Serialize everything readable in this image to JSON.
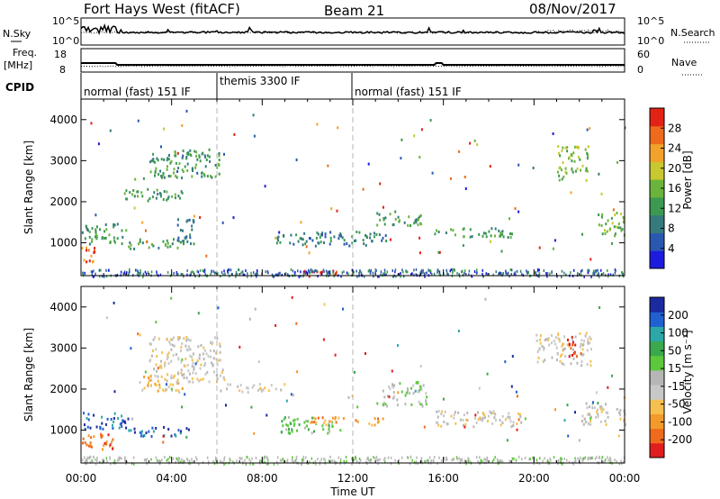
{
  "header": {
    "title": "Fort Hays West (fitACF)",
    "beam": "Beam 21",
    "date": "08/Nov/2017"
  },
  "top_panel": {
    "nsky_label": "N.Sky",
    "nsearch_label": "N.Search",
    "left_ticks": [
      "10^5",
      "10^0"
    ],
    "right_ticks": [
      "10^5",
      "10^0"
    ]
  },
  "freq_panel": {
    "freq_label": "Freq.",
    "freq_unit": "[MHz]",
    "nave_label": "Nave",
    "left_ticks": [
      "18",
      "8"
    ],
    "right_ticks": [
      "60",
      "0"
    ]
  },
  "cpid": {
    "label": "CPID",
    "segments": [
      {
        "name": "normal (fast) 151 IF",
        "start_hour": 0,
        "end_hour": 6
      },
      {
        "name": "themis 3300 IF",
        "start_hour": 6,
        "end_hour": 12
      },
      {
        "name": "normal (fast) 151 IF",
        "start_hour": 12,
        "end_hour": 24
      }
    ]
  },
  "power_colorbar": {
    "label": "Power [dB]",
    "ticks": [
      "4",
      "8",
      "12",
      "16",
      "20",
      "24",
      "28"
    ],
    "colors": [
      "#1c1cde",
      "#2a58b0",
      "#357a7c",
      "#3c9a50",
      "#6ab43c",
      "#c8c830",
      "#f2a22a",
      "#ee6a1c",
      "#e32216"
    ]
  },
  "velocity_colorbar": {
    "label": "Velocity [m s⁻¹]",
    "ticks": [
      "-200",
      "-100",
      "-50",
      "-15",
      "15",
      "50",
      "100",
      "200"
    ],
    "colors": [
      "#e01e1e",
      "#ee6a1c",
      "#f39a2a",
      "#f6c050",
      "#c8c8c8",
      "#b6b6b6",
      "#5cc83c",
      "#3aa84c",
      "#2ca8a8",
      "#2060d0",
      "#1c2aa0"
    ]
  },
  "chart_data": [
    {
      "type": "heatmap",
      "name": "power",
      "xlabel": "Time UT",
      "ylabel": "Slant Range [km]",
      "xlim": [
        0,
        24
      ],
      "ylim": [
        200,
        4500
      ],
      "xticks": [
        "00:00",
        "04:00",
        "08:00",
        "12:00",
        "16:00",
        "20:00",
        "00:00"
      ],
      "yticks": [
        1000,
        2000,
        3000,
        4000
      ],
      "vlines_hour": [
        6,
        12
      ],
      "regions": [
        {
          "t0": 0.0,
          "t1": 0.6,
          "r0": 560,
          "r1": 920,
          "level": 7
        },
        {
          "t0": 0.0,
          "t1": 2.0,
          "r0": 1000,
          "r1": 1500,
          "level": 3
        },
        {
          "t0": 2.0,
          "t1": 4.8,
          "r0": 880,
          "r1": 1120,
          "level": 3
        },
        {
          "t0": 4.2,
          "t1": 5.0,
          "r0": 1000,
          "r1": 1600,
          "level": 2
        },
        {
          "t0": 1.8,
          "t1": 4.5,
          "r0": 2050,
          "r1": 2350,
          "level": 3
        },
        {
          "t0": 3.0,
          "t1": 6.2,
          "r0": 2600,
          "r1": 3300,
          "level": 3
        },
        {
          "t0": 8.6,
          "t1": 13.5,
          "r0": 950,
          "r1": 1300,
          "level": 2
        },
        {
          "t0": 9.8,
          "t1": 11.3,
          "r0": 200,
          "r1": 380,
          "level": 8
        },
        {
          "t0": 13.0,
          "t1": 15.0,
          "r0": 1450,
          "r1": 1800,
          "level": 3
        },
        {
          "t0": 15.5,
          "t1": 19.0,
          "r0": 1150,
          "r1": 1380,
          "level": 3
        },
        {
          "t0": 21.0,
          "t1": 22.4,
          "r0": 2550,
          "r1": 3400,
          "level": 4
        },
        {
          "t0": 22.8,
          "t1": 24.0,
          "r0": 1200,
          "r1": 1800,
          "level": 4
        }
      ]
    },
    {
      "type": "heatmap",
      "name": "velocity",
      "xlabel": "Time UT",
      "ylabel": "Slant Range [km]",
      "xlim": [
        0,
        24
      ],
      "ylim": [
        200,
        4500
      ],
      "xticks": [
        "00:00",
        "04:00",
        "08:00",
        "12:00",
        "16:00",
        "20:00",
        "00:00"
      ],
      "yticks": [
        1000,
        2000,
        3000,
        4000
      ],
      "vlines_hour": [
        6,
        12
      ],
      "regions": [
        {
          "t0": 0.0,
          "t1": 1.4,
          "r0": 500,
          "r1": 950,
          "level": 1
        },
        {
          "t0": 0.0,
          "t1": 2.0,
          "r0": 1050,
          "r1": 1450,
          "level": 9
        },
        {
          "t0": 2.0,
          "t1": 4.8,
          "r0": 880,
          "r1": 1100,
          "level": 9
        },
        {
          "t0": 2.5,
          "t1": 4.5,
          "r0": 1950,
          "r1": 2350,
          "level": 3
        },
        {
          "t0": 3.0,
          "t1": 6.3,
          "r0": 2200,
          "r1": 3300,
          "level": 4
        },
        {
          "t0": 6.0,
          "t1": 9.0,
          "r0": 1950,
          "r1": 2150,
          "level": 4
        },
        {
          "t0": 8.8,
          "t1": 11.5,
          "r0": 950,
          "r1": 1350,
          "level": 6
        },
        {
          "t0": 10.0,
          "t1": 13.3,
          "r0": 1150,
          "r1": 1350,
          "level": 2
        },
        {
          "t0": 13.3,
          "t1": 15.3,
          "r0": 1600,
          "r1": 2200,
          "level": 5
        },
        {
          "t0": 15.5,
          "t1": 19.5,
          "r0": 1100,
          "r1": 1500,
          "level": 4
        },
        {
          "t0": 20.0,
          "t1": 22.5,
          "r0": 2600,
          "r1": 3400,
          "level": 4
        },
        {
          "t0": 21.3,
          "t1": 21.9,
          "r0": 2800,
          "r1": 3300,
          "level": 0
        },
        {
          "t0": 22.0,
          "t1": 24.0,
          "r0": 1150,
          "r1": 1700,
          "level": 4
        }
      ]
    }
  ]
}
